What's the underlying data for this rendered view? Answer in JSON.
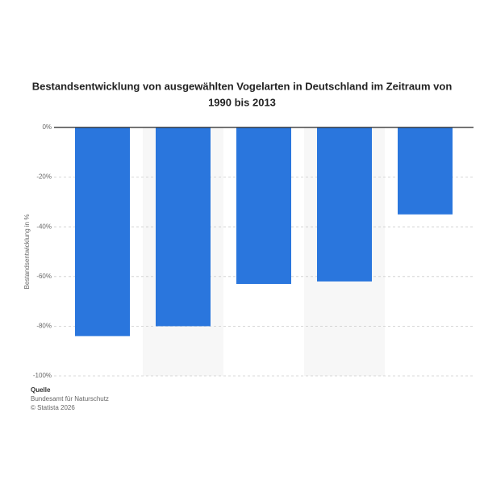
{
  "chart_data": {
    "type": "bar",
    "title_lines": [
      "Bestandsentwicklung von ausgewählten Vogelarten in Deutschland im Zeitraum von",
      "1990 bis 2013"
    ],
    "y_label": "Bestandsentwicklung in %",
    "categories": [
      null,
      null,
      null,
      null,
      null
    ],
    "values": [
      -84,
      -80,
      -63,
      -62,
      -35
    ],
    "color": "#2a76dd",
    "ylim": [
      -100,
      0
    ],
    "yticks": [
      {
        "value": 0,
        "label": "0%"
      },
      {
        "value": -20,
        "label": "-20%"
      },
      {
        "value": -40,
        "label": "-40%"
      },
      {
        "value": -60,
        "label": "-60%"
      },
      {
        "value": -80,
        "label": "-80%"
      },
      {
        "value": -100,
        "label": "-100%"
      }
    ],
    "grid": true,
    "footer": [
      "Quelle",
      "Bundesamt für Naturschutz",
      "© Statista 2026"
    ]
  }
}
